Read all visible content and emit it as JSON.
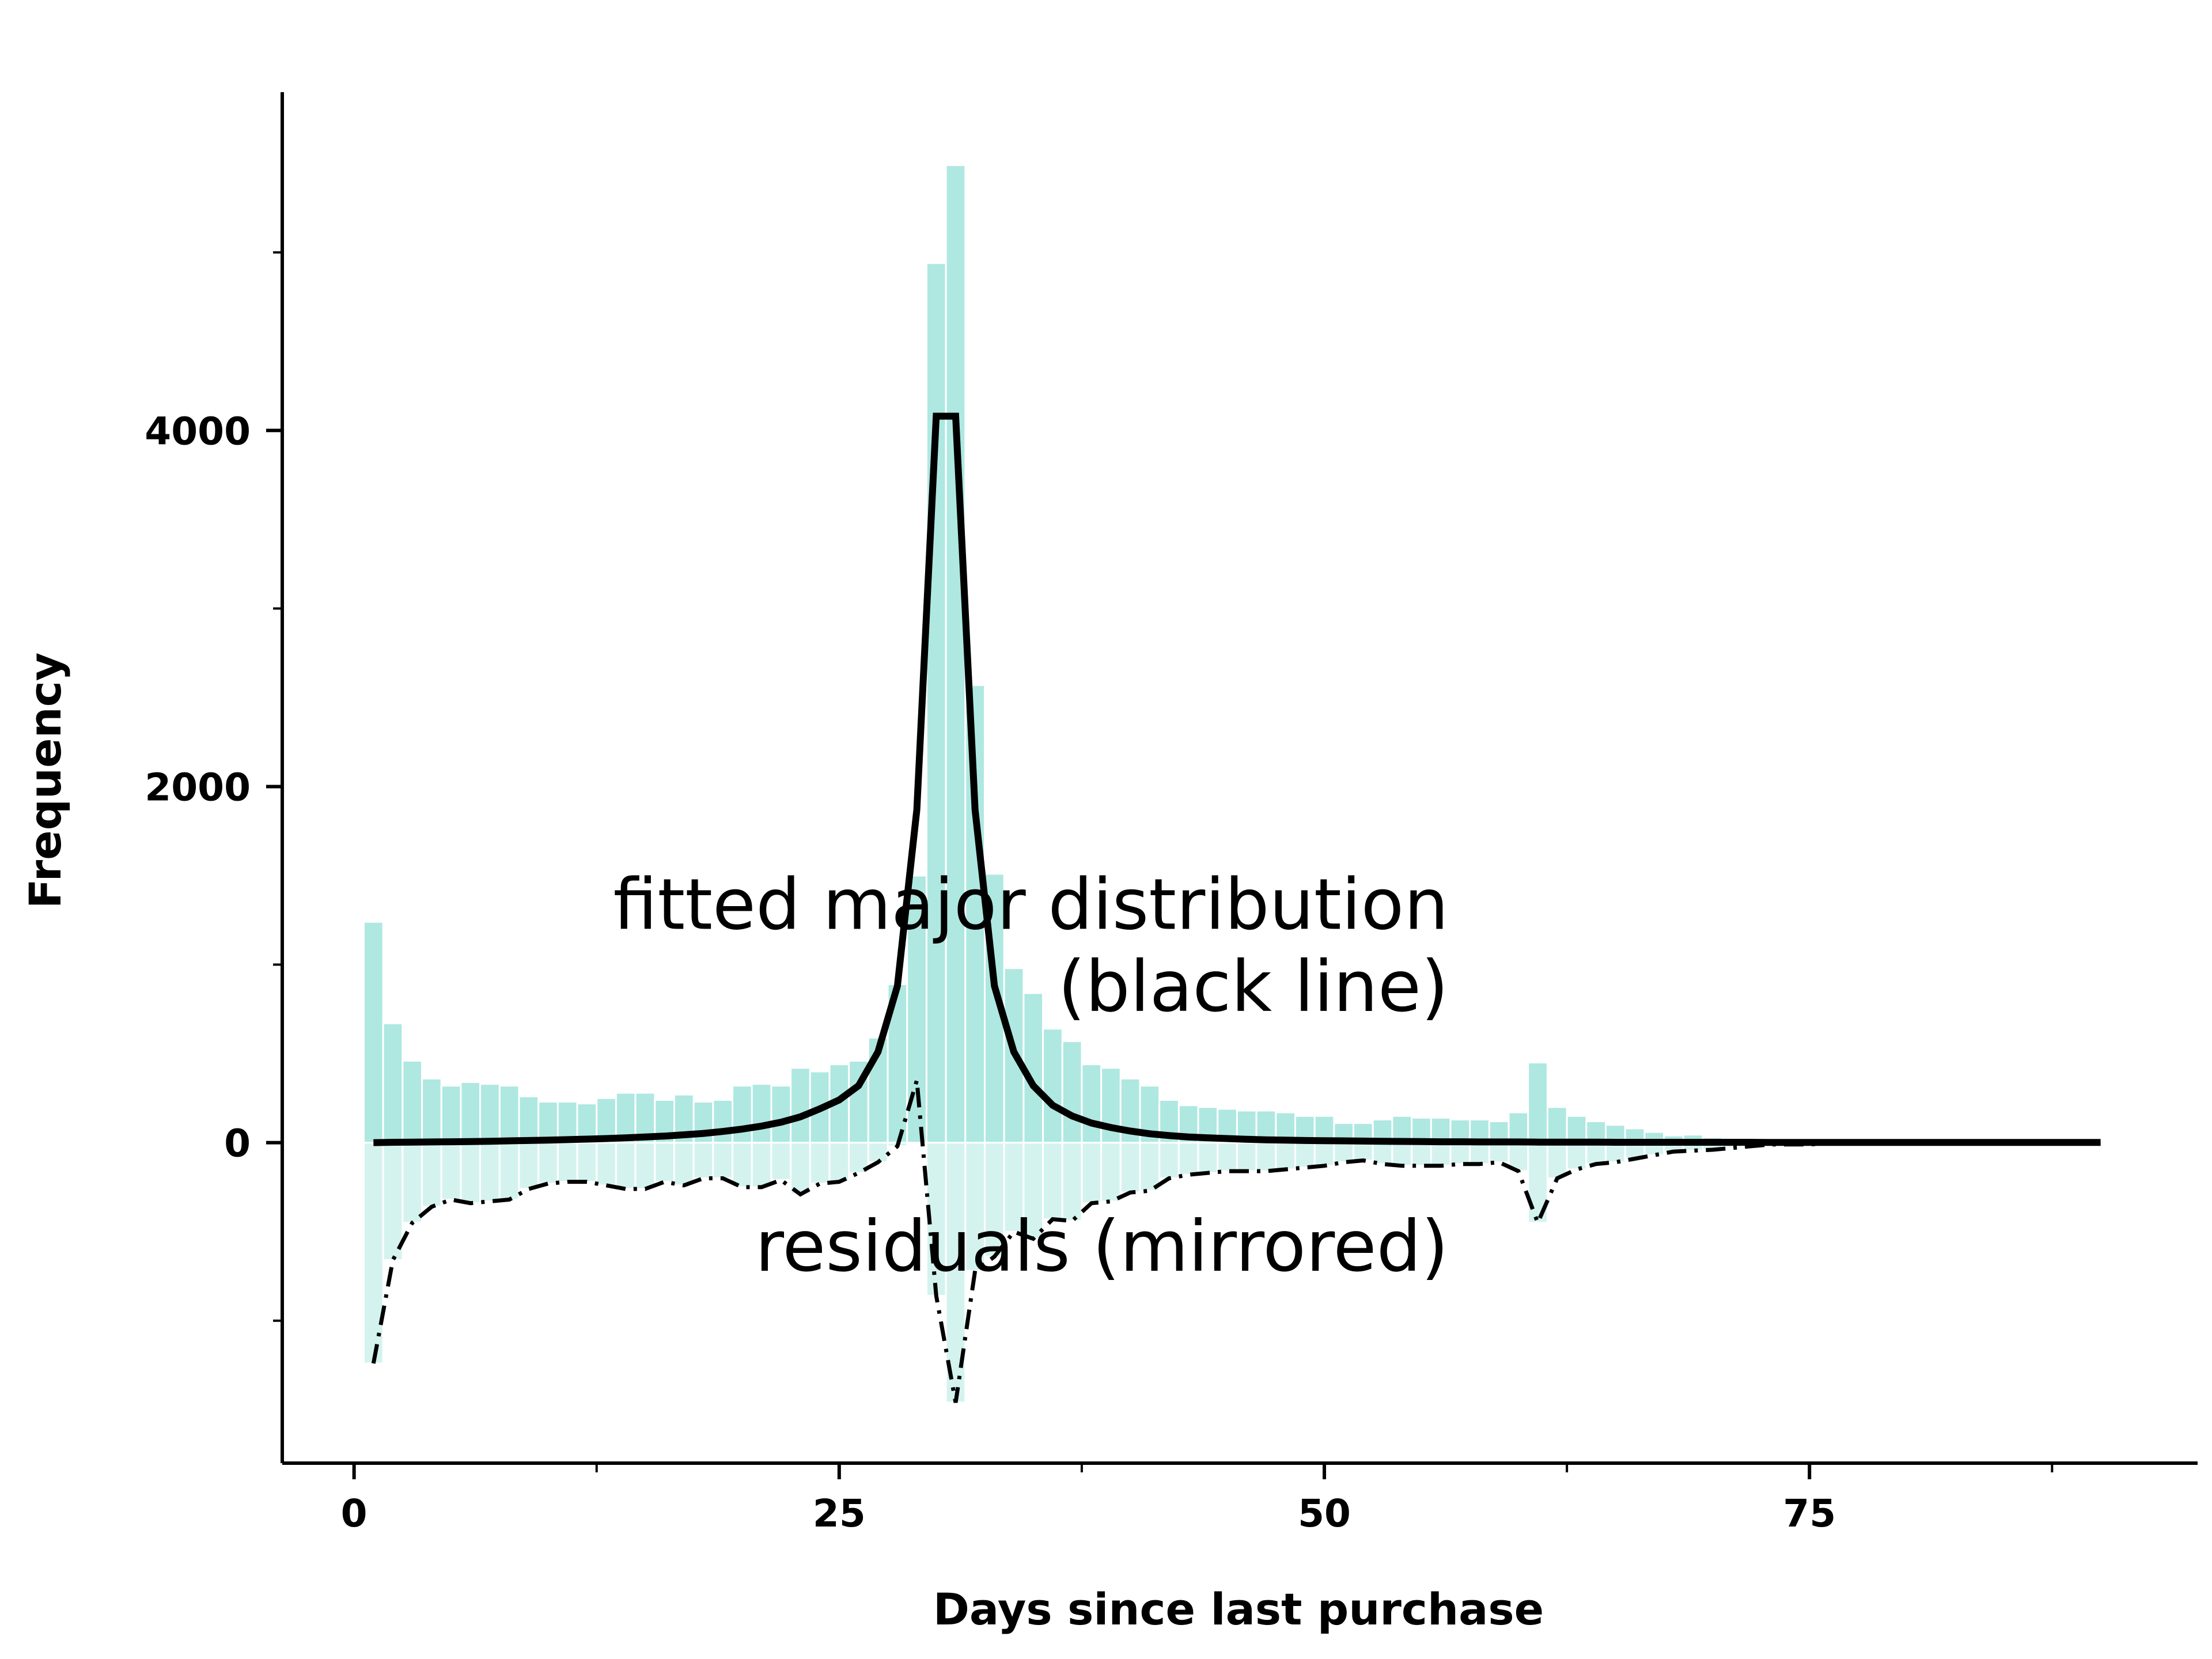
{
  "chart_data": {
    "type": "bar",
    "title": "",
    "xlabel": "Days since last purchase",
    "ylabel": "Frequency",
    "xlim": [
      -3.7,
      95
    ],
    "ylim": [
      -1800,
      5900
    ],
    "grid": false,
    "legend": "none",
    "x_ticks": [
      0,
      25,
      50,
      75
    ],
    "x_tick_labels": [
      "0",
      "25",
      "50",
      "75"
    ],
    "x_minor_ticks": [
      12.5,
      37.5,
      62.5,
      87.5
    ],
    "y_ticks": [
      0,
      2000,
      4000
    ],
    "y_tick_labels": [
      "0",
      "2000",
      "4000"
    ],
    "y_minor_ticks": [
      -1000,
      1000,
      3000,
      5000
    ],
    "colors": {
      "histogram": "#aee8e1",
      "residual_fill": "#d4f3ef",
      "fit_line": "#000000",
      "residual_line": "#000000"
    },
    "series": [
      {
        "kind": "histogram",
        "x": [
          1,
          2,
          3,
          4,
          5,
          6,
          7,
          8,
          9,
          10,
          11,
          12,
          13,
          14,
          15,
          16,
          17,
          18,
          19,
          20,
          21,
          22,
          23,
          24,
          25,
          26,
          27,
          28,
          29,
          30,
          31,
          32,
          33,
          34,
          35,
          36,
          37,
          38,
          39,
          40,
          41,
          42,
          43,
          44,
          45,
          46,
          47,
          48,
          49,
          50,
          51,
          52,
          53,
          54,
          55,
          56,
          57,
          58,
          59,
          60,
          61,
          62,
          63,
          64,
          65,
          66,
          67,
          68,
          69,
          70,
          71,
          72,
          73,
          74,
          75,
          76,
          77,
          78,
          79,
          80,
          81,
          82,
          83,
          84,
          85,
          86,
          87,
          88,
          89,
          90
        ],
        "values": [
          1240,
          670,
          460,
          360,
          320,
          340,
          330,
          320,
          260,
          230,
          230,
          220,
          250,
          280,
          280,
          240,
          270,
          230,
          240,
          320,
          330,
          320,
          420,
          400,
          440,
          460,
          590,
          890,
          1500,
          4940,
          5490,
          2570,
          1510,
          980,
          840,
          640,
          570,
          440,
          420,
          360,
          320,
          240,
          210,
          200,
          190,
          180,
          180,
          170,
          150,
          150,
          110,
          110,
          130,
          150,
          140,
          140,
          130,
          130,
          120,
          170,
          450,
          200,
          150,
          120,
          100,
          80,
          60,
          40,
          45,
          30,
          20,
          15,
          10,
          10,
          5,
          5,
          5,
          5,
          5,
          5,
          5,
          5,
          5,
          5,
          5,
          5,
          5,
          5,
          5,
          5
        ]
      },
      {
        "kind": "line",
        "style": "solid",
        "x": [
          1,
          2,
          3,
          4,
          5,
          6,
          7,
          8,
          9,
          10,
          11,
          12,
          13,
          14,
          15,
          16,
          17,
          18,
          19,
          20,
          21,
          22,
          23,
          24,
          25,
          26,
          27,
          28,
          29,
          30,
          31,
          32,
          33,
          34,
          35,
          36,
          37,
          38,
          39,
          40,
          41,
          42,
          43,
          44,
          45,
          46,
          47,
          48,
          49,
          50,
          51,
          52,
          53,
          54,
          55,
          56,
          57,
          58,
          59,
          60,
          61,
          62,
          63,
          64,
          65,
          66,
          67,
          68,
          69,
          70,
          71,
          72,
          73,
          74,
          75,
          76,
          77,
          78,
          79,
          80,
          81,
          82,
          83,
          84,
          85,
          86,
          87,
          88,
          89,
          90
        ],
        "values": [
          0,
          2,
          3,
          4,
          5,
          6,
          8,
          10,
          12,
          14,
          17,
          20,
          23,
          27,
          32,
          37,
          44,
          52,
          63,
          76,
          93,
          115,
          145,
          190,
          240,
          320,
          510,
          880,
          1870,
          4080,
          4080,
          1870,
          880,
          510,
          320,
          210,
          150,
          110,
          85,
          65,
          50,
          40,
          32,
          27,
          23,
          19,
          16,
          14,
          12,
          11,
          10,
          9,
          8,
          7,
          6,
          5,
          5,
          4,
          4,
          4,
          3,
          3,
          3,
          3,
          2,
          2,
          2,
          2,
          2,
          2,
          2,
          2,
          1,
          1,
          1,
          1,
          1,
          1,
          1,
          1,
          1,
          1,
          1,
          1,
          1,
          1,
          1,
          1,
          1,
          1
        ]
      },
      {
        "kind": "residual_mirrored",
        "style": "dashdot",
        "x": [
          1,
          2,
          3,
          4,
          5,
          6,
          7,
          8,
          9,
          10,
          11,
          12,
          13,
          14,
          15,
          16,
          17,
          18,
          19,
          20,
          21,
          22,
          23,
          24,
          25,
          26,
          27,
          28,
          29,
          30,
          31,
          32,
          33,
          34,
          35,
          36,
          37,
          38,
          39,
          40,
          41,
          42,
          43,
          44,
          45,
          46,
          47,
          48,
          49,
          50,
          51,
          52,
          53,
          54,
          55,
          56,
          57,
          58,
          59,
          60,
          61,
          62,
          63,
          64,
          65,
          66,
          67,
          68,
          69,
          70,
          71,
          72,
          73,
          74,
          75,
          76,
          77,
          78,
          79,
          80,
          81,
          82,
          83,
          84,
          85,
          86,
          87,
          88,
          89,
          90
        ],
        "values": [
          -1240,
          -660,
          -450,
          -360,
          -320,
          -340,
          -330,
          -320,
          -260,
          -230,
          -220,
          -220,
          -240,
          -260,
          -260,
          -220,
          -240,
          -200,
          -200,
          -250,
          -250,
          -210,
          -290,
          -230,
          -220,
          -170,
          -110,
          -20,
          350,
          -860,
          -1460,
          -720,
          -640,
          -500,
          -540,
          -430,
          -440,
          -340,
          -330,
          -280,
          -270,
          -200,
          -180,
          -170,
          -160,
          -160,
          -160,
          -150,
          -140,
          -130,
          -110,
          -100,
          -120,
          -130,
          -130,
          -130,
          -120,
          -120,
          -110,
          -160,
          -450,
          -200,
          -150,
          -120,
          -110,
          -90,
          -70,
          -50,
          -45,
          -40,
          -30,
          -20,
          -10,
          -10,
          -10,
          -5,
          -5,
          -5,
          -5,
          -5,
          -5,
          -5,
          -5,
          -5,
          -5,
          -5,
          -5,
          -5,
          -5,
          -5
        ]
      }
    ],
    "annotations": [
      {
        "text": "fitted major distribution",
        "x": 56.4,
        "y": 1200
      },
      {
        "text": "(black line)",
        "x": 56.4,
        "y": 740
      },
      {
        "text": "residuals (mirrored)",
        "x": 56.4,
        "y": -720
      }
    ]
  }
}
